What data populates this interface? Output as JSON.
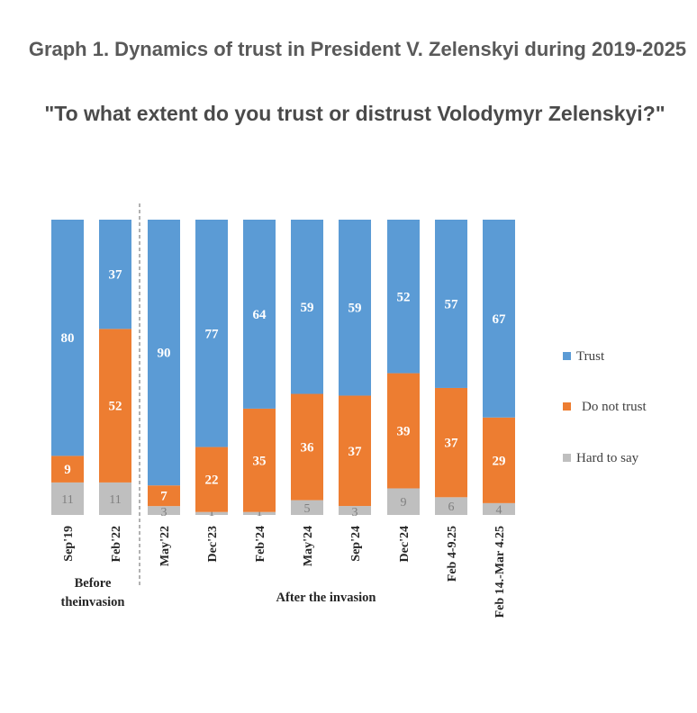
{
  "title_line1": "Graph 1. Dynamics of trust in President V. Zelenskyi during 2019-2025",
  "title_line2": "\"To what extent do you trust or distrust Volodymyr Zelenskyi?\"",
  "colors": {
    "trust": "#5B9BD5",
    "do_not_trust": "#ED7D31",
    "hard_to_say": "#BFBFBF"
  },
  "chart_data": {
    "type": "bar",
    "stacked": true,
    "normalized_100": true,
    "categories": [
      "Sep'19",
      "Feb'22",
      "May'22",
      "Dec'23",
      "Feb'24",
      "May'24",
      "Sep'24",
      "Dec'24",
      "Feb 4-9.25",
      "Feb 14.-Mar 4.25"
    ],
    "series": [
      {
        "name": "Trust",
        "values": [
          80,
          37,
          90,
          77,
          64,
          59,
          59,
          52,
          57,
          67
        ]
      },
      {
        "name": "Do not trust",
        "values": [
          9,
          52,
          7,
          22,
          35,
          36,
          37,
          39,
          37,
          29
        ]
      },
      {
        "name": "Hard to say",
        "values": [
          11,
          11,
          3,
          1,
          1,
          5,
          3,
          9,
          6,
          4
        ]
      }
    ],
    "groups": [
      {
        "label": "Before theinvasion",
        "categories": [
          "Sep'19",
          "Feb'22"
        ]
      },
      {
        "label": "After the invasion",
        "categories": [
          "May'22",
          "Dec'23",
          "Feb'24",
          "May'24",
          "Sep'24",
          "Dec'24",
          "Feb 4-9.25",
          "Feb 14.-Mar 4.25"
        ]
      }
    ],
    "legend_position": "right",
    "grid": false
  }
}
